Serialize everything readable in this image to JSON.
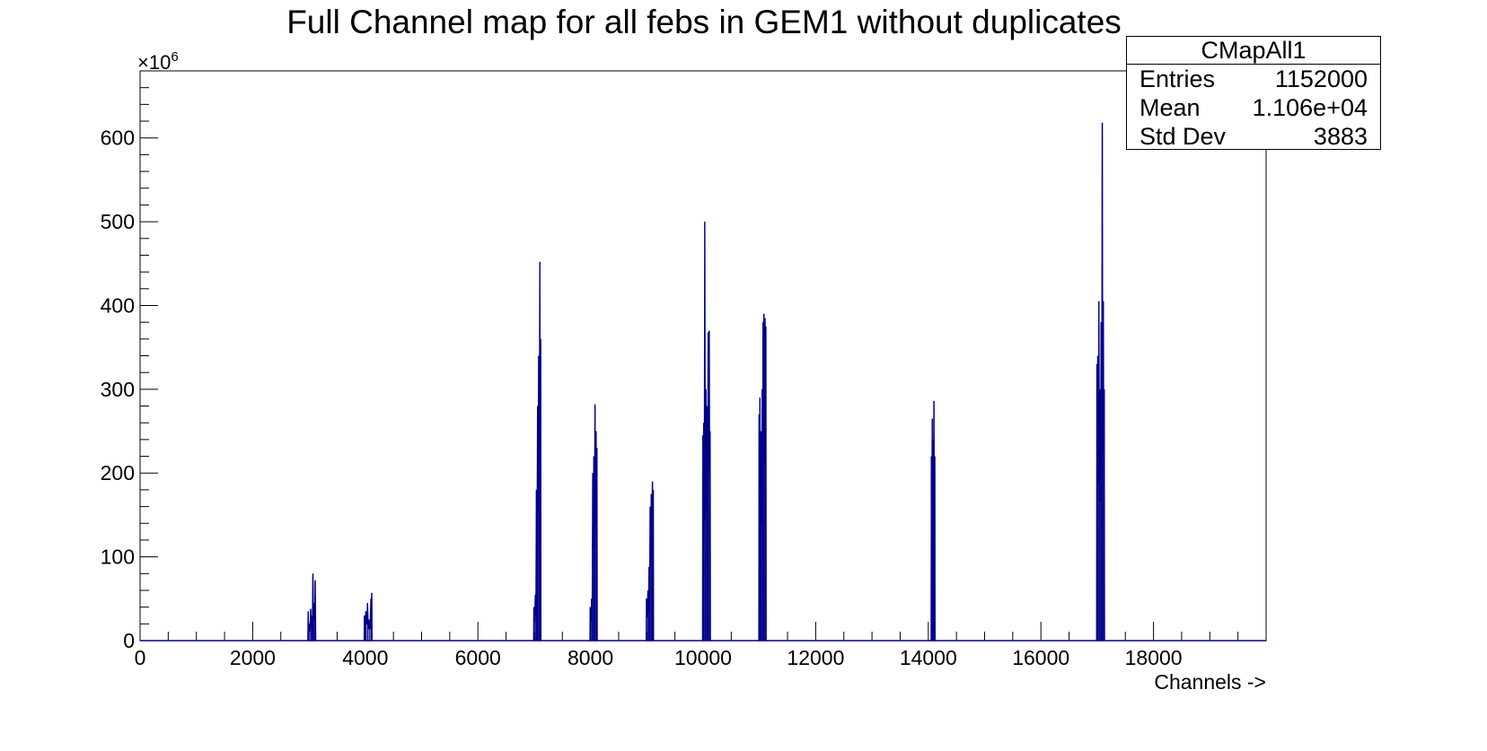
{
  "chart_data": {
    "type": "histogram",
    "title": "Full Channel map for all febs in GEM1 without duplicates",
    "xlabel": "Channels ->",
    "ylabel": "",
    "y_multiplier_label": "×10⁶",
    "xlim": [
      0,
      20000
    ],
    "ylim": [
      0,
      680
    ],
    "x_ticks": [
      0,
      2000,
      4000,
      6000,
      8000,
      10000,
      12000,
      14000,
      16000,
      18000
    ],
    "y_ticks": [
      0,
      100,
      200,
      300,
      400,
      500,
      600
    ],
    "grid": false,
    "line_color": "#00008b",
    "clusters": [
      {
        "start": 2980,
        "end": 3120,
        "peaks": [
          [
            2985,
            35
          ],
          [
            3000,
            20
          ],
          [
            3030,
            38
          ],
          [
            3050,
            30
          ],
          [
            3070,
            80
          ],
          [
            3090,
            45
          ],
          [
            3110,
            72
          ]
        ]
      },
      {
        "start": 3980,
        "end": 4120,
        "peaks": [
          [
            3985,
            30
          ],
          [
            4010,
            35
          ],
          [
            4040,
            45
          ],
          [
            4070,
            25
          ],
          [
            4100,
            50
          ],
          [
            4115,
            57
          ]
        ]
      },
      {
        "start": 6990,
        "end": 7120,
        "peaks": [
          [
            6995,
            40
          ],
          [
            7020,
            55
          ],
          [
            7040,
            180
          ],
          [
            7060,
            280
          ],
          [
            7080,
            340
          ],
          [
            7100,
            452
          ],
          [
            7115,
            360
          ]
        ]
      },
      {
        "start": 7990,
        "end": 8120,
        "peaks": [
          [
            7995,
            40
          ],
          [
            8020,
            50
          ],
          [
            8040,
            200
          ],
          [
            8060,
            220
          ],
          [
            8080,
            282
          ],
          [
            8100,
            250
          ],
          [
            8115,
            230
          ]
        ]
      },
      {
        "start": 8990,
        "end": 9120,
        "peaks": [
          [
            8995,
            50
          ],
          [
            9020,
            60
          ],
          [
            9040,
            88
          ],
          [
            9060,
            160
          ],
          [
            9080,
            175
          ],
          [
            9100,
            190
          ],
          [
            9115,
            180
          ]
        ]
      },
      {
        "start": 9990,
        "end": 10130,
        "peaks": [
          [
            9995,
            245
          ],
          [
            10010,
            260
          ],
          [
            10030,
            500
          ],
          [
            10050,
            300
          ],
          [
            10070,
            280
          ],
          [
            10090,
            368
          ],
          [
            10110,
            370
          ],
          [
            10125,
            250
          ]
        ]
      },
      {
        "start": 10990,
        "end": 11120,
        "peaks": [
          [
            10995,
            270
          ],
          [
            11010,
            290
          ],
          [
            11030,
            250
          ],
          [
            11050,
            300
          ],
          [
            11065,
            380
          ],
          [
            11080,
            390
          ],
          [
            11100,
            385
          ],
          [
            11115,
            375
          ]
        ]
      },
      {
        "start": 14050,
        "end": 14120,
        "peaks": [
          [
            14055,
            220
          ],
          [
            14070,
            265
          ],
          [
            14085,
            240
          ],
          [
            14100,
            286
          ],
          [
            14115,
            220
          ]
        ]
      },
      {
        "start": 16990,
        "end": 17130,
        "peaks": [
          [
            16995,
            330
          ],
          [
            17010,
            340
          ],
          [
            17030,
            405
          ],
          [
            17050,
            300
          ],
          [
            17070,
            380
          ],
          [
            17090,
            618
          ],
          [
            17110,
            405
          ],
          [
            17125,
            300
          ]
        ]
      }
    ]
  },
  "stats_box": {
    "name": "CMapAll1",
    "entries_label": "Entries",
    "entries_value": "1152000",
    "mean_label": "Mean",
    "mean_value": "1.106e+04",
    "stddev_label": "Std Dev",
    "stddev_value": "3883"
  }
}
